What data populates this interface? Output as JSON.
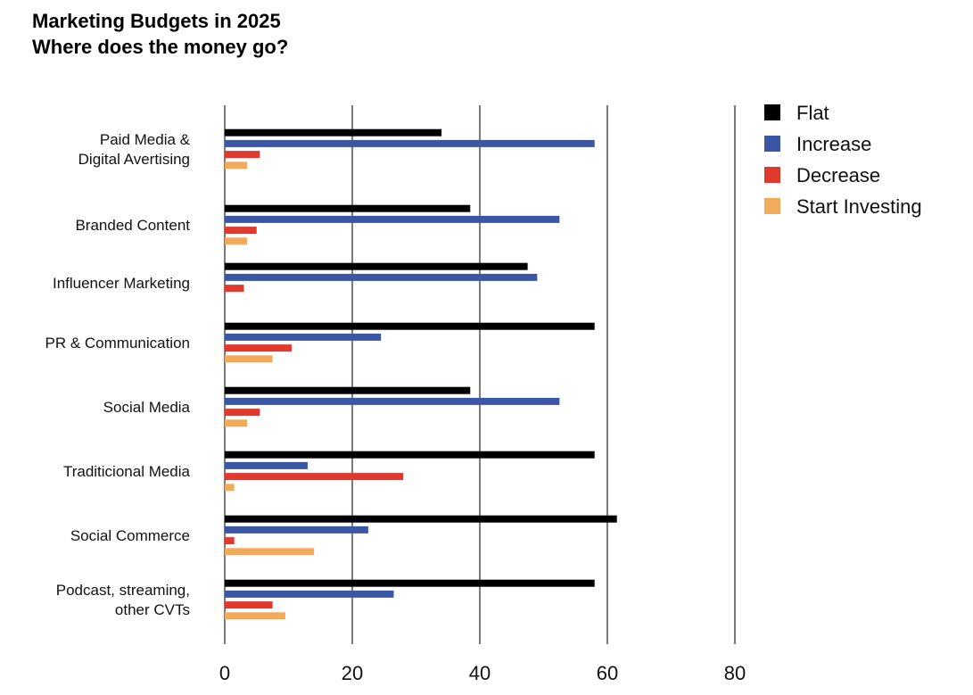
{
  "chart_data": {
    "type": "bar",
    "orientation": "horizontal",
    "title": "Marketing Budgets in 2025",
    "subtitle": "Where does the money go?",
    "xlabel": "",
    "ylabel": "",
    "xlim": [
      0,
      80
    ],
    "xticks": [
      "0",
      "20",
      "40",
      "60",
      "80"
    ],
    "grid": true,
    "legend_position": "top-right",
    "categories": [
      [
        "Paid Media &",
        "Digital Avertising"
      ],
      [
        "Branded Content"
      ],
      [
        "Influencer Marketing"
      ],
      [
        "PR & Communication"
      ],
      [
        "Social Media"
      ],
      [
        "Traditicional Media"
      ],
      [
        "Social Commerce"
      ],
      [
        "Podcast, streaming,",
        "other CVTs"
      ]
    ],
    "series": [
      {
        "name": "Flat",
        "color": "#000000",
        "values": [
          34,
          38.5,
          47.5,
          58,
          38.5,
          58,
          61.5,
          58
        ]
      },
      {
        "name": "Increase",
        "color": "#3a56a5",
        "values": [
          58,
          52.5,
          49,
          24.5,
          52.5,
          13,
          22.5,
          26.5
        ]
      },
      {
        "name": "Decrease",
        "color": "#e03a2f",
        "values": [
          5.5,
          5,
          3,
          10.5,
          5.5,
          28,
          1.5,
          7.5
        ]
      },
      {
        "name": "Start Investing",
        "color": "#f2ab5a",
        "values": [
          3.5,
          3.5,
          null,
          7.5,
          3.5,
          1.5,
          14,
          9.5
        ]
      }
    ]
  }
}
